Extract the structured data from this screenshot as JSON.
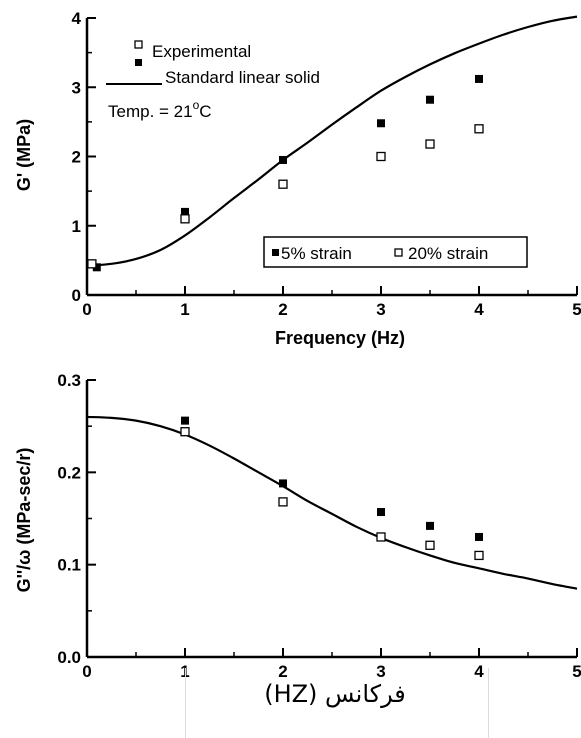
{
  "chart_data": [
    {
      "type": "scatter",
      "xlabel": "Frequency (Hz)",
      "ylabel": "G' (MPa)",
      "xlim": [
        0,
        5
      ],
      "ylim": [
        0,
        4
      ],
      "x_ticks": [
        "0",
        "1",
        "2",
        "3",
        "4",
        "5"
      ],
      "y_ticks": [
        "0",
        "1",
        "2",
        "3",
        "4"
      ],
      "legend": {
        "experimental": "Experimental",
        "model": "Standard linear solid",
        "strain5": "5% strain",
        "strain20": "20% strain"
      },
      "annotation": {
        "prefix": "Temp. = 21",
        "sup": "o",
        "suffix": "C"
      },
      "series": [
        {
          "name": "5% strain",
          "marker": "filled-square",
          "x": [
            0.1,
            1,
            2,
            3,
            3.5,
            4
          ],
          "y": [
            0.4,
            1.2,
            1.95,
            2.48,
            2.82,
            3.12
          ]
        },
        {
          "name": "20% strain",
          "marker": "open-square",
          "x": [
            0.05,
            1,
            2,
            3,
            3.5,
            4
          ],
          "y": [
            0.45,
            1.1,
            1.6,
            2.0,
            2.18,
            2.4
          ]
        },
        {
          "name": "Standard linear solid",
          "style": "line",
          "x": [
            0,
            0.25,
            0.5,
            0.75,
            1,
            1.25,
            1.5,
            1.75,
            2,
            2.25,
            2.5,
            2.75,
            3,
            3.25,
            3.5,
            3.75,
            4,
            4.25,
            4.5,
            4.75,
            5
          ],
          "y": [
            0.42,
            0.45,
            0.52,
            0.65,
            0.86,
            1.12,
            1.4,
            1.67,
            1.95,
            2.2,
            2.46,
            2.71,
            2.95,
            3.15,
            3.33,
            3.49,
            3.63,
            3.76,
            3.87,
            3.96,
            4.02
          ]
        }
      ]
    },
    {
      "type": "scatter",
      "xlabel": "",
      "ylabel": "G''/ω (MPa-sec/r)",
      "xlim": [
        0,
        5
      ],
      "ylim": [
        0,
        0.3
      ],
      "x_ticks": [
        "0",
        "1",
        "2",
        "3",
        "4",
        "5"
      ],
      "y_ticks": [
        "0.0",
        "0.1",
        "0.2",
        "0.3"
      ],
      "series": [
        {
          "name": "5% strain",
          "marker": "filled-square",
          "x": [
            1,
            2,
            3,
            3.5,
            4
          ],
          "y": [
            0.256,
            0.188,
            0.157,
            0.142,
            0.13
          ]
        },
        {
          "name": "20% strain",
          "marker": "open-square",
          "x": [
            1,
            2,
            3,
            3.5,
            4
          ],
          "y": [
            0.244,
            0.168,
            0.13,
            0.121,
            0.11
          ]
        },
        {
          "name": "Standard linear solid",
          "style": "line",
          "x": [
            0,
            0.25,
            0.5,
            0.75,
            1,
            1.25,
            1.5,
            1.75,
            2,
            2.25,
            2.5,
            2.75,
            3,
            3.25,
            3.5,
            3.75,
            4,
            4.25,
            4.5,
            4.75,
            5
          ],
          "y": [
            0.26,
            0.259,
            0.256,
            0.25,
            0.241,
            0.229,
            0.215,
            0.2,
            0.185,
            0.169,
            0.155,
            0.141,
            0.129,
            0.119,
            0.11,
            0.102,
            0.096,
            0.09,
            0.085,
            0.079,
            0.074
          ]
        }
      ]
    }
  ],
  "caption": "(HZ) فركانس"
}
